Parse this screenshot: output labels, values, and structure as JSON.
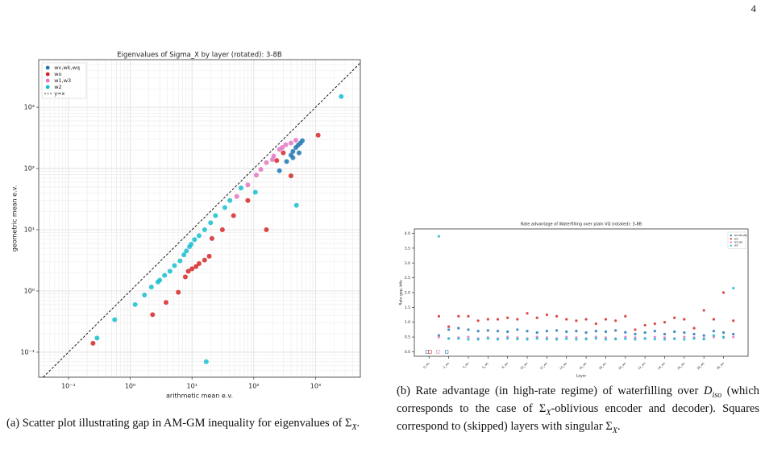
{
  "page_number": "4",
  "chart_data": [
    {
      "type": "scatter",
      "title": "Eigenvalues of Sigma_X by layer (rotated): 3-8B",
      "x_label": "arithmetic mean e.v.",
      "y_label": "geometric mean e.v.",
      "xscale": "log",
      "yscale": "log",
      "grid": true,
      "legend": "upper left",
      "xlim": [
        0.033,
        5300
      ],
      "ylim": [
        0.039,
        6000
      ],
      "xticks": [
        {
          "value": 0.1,
          "label": "10⁻¹"
        },
        {
          "value": 1,
          "label": "10⁰"
        },
        {
          "value": 10,
          "label": "10¹"
        },
        {
          "value": 100,
          "label": "10²"
        },
        {
          "value": 1000,
          "label": "10³"
        }
      ],
      "yticks": [
        {
          "value": 0.1,
          "label": "10⁻¹"
        },
        {
          "value": 1,
          "label": "10⁰"
        },
        {
          "value": 10,
          "label": "10¹"
        },
        {
          "value": 100,
          "label": "10²"
        },
        {
          "value": 1000,
          "label": "10³"
        }
      ],
      "reference_line": {
        "name": "y=x",
        "color": "#000000"
      },
      "series": [
        {
          "name": "wv,wk,wq",
          "color": "#1f77b4",
          "x": [
            260,
            340,
            400,
            430,
            480,
            520,
            570,
            610,
            540,
            430
          ],
          "values": [
            92,
            130,
            165,
            190,
            220,
            240,
            260,
            285,
            180,
            150
          ]
        },
        {
          "name": "wo",
          "color": "#d62728",
          "x": [
            0.25,
            2.3,
            3.8,
            6,
            7.8,
            8.7,
            10,
            11.6,
            13,
            16,
            19,
            21,
            31,
            47,
            80,
            160,
            400,
            1100,
            235,
            300
          ],
          "values": [
            0.14,
            0.41,
            0.65,
            0.95,
            1.7,
            2.1,
            2.3,
            2.5,
            2.8,
            3.2,
            3.7,
            7.2,
            10,
            17,
            30,
            10,
            76,
            350,
            135,
            180
          ]
        },
        {
          "name": "w1,w3",
          "color": "#e377c2",
          "x": [
            110,
            130,
            160,
            210,
            260,
            330,
            400,
            480,
            80,
            53,
            200,
            290
          ],
          "values": [
            78,
            97,
            125,
            160,
            205,
            245,
            260,
            290,
            54,
            35,
            140,
            220
          ]
        },
        {
          "name": "w2",
          "color": "#17becf",
          "x": [
            0.29,
            0.56,
            1.2,
            1.7,
            2.2,
            2.8,
            3.0,
            3.6,
            4.4,
            5.2,
            6.4,
            7.4,
            8.1,
            9.1,
            9.7,
            11,
            13,
            16,
            20,
            24,
            34,
            41,
            62,
            106,
            490,
            17,
            2600
          ],
          "values": [
            0.17,
            0.34,
            0.6,
            0.86,
            1.16,
            1.4,
            1.5,
            1.8,
            2.1,
            2.6,
            3.1,
            3.9,
            4.5,
            5.3,
            5.8,
            6.9,
            8,
            10,
            13,
            17,
            23,
            30,
            48,
            41,
            25,
            0.07,
            1500
          ]
        }
      ]
    },
    {
      "type": "scatter",
      "title": "Rate advantage of Waterfilling over plain VQ (rotated): 3-8B",
      "x_label": "Layer",
      "y_label": "Rate gap, bits",
      "grid": false,
      "legend": "upper right",
      "xlim": [
        -1.5,
        32.5
      ],
      "ylim": [
        -0.15,
        4.15
      ],
      "xticks": [
        {
          "value": 0,
          "label": "0_wo"
        },
        {
          "value": 2,
          "label": "2_wo"
        },
        {
          "value": 4,
          "label": "4_wo"
        },
        {
          "value": 6,
          "label": "6_wo"
        },
        {
          "value": 8,
          "label": "8_wo"
        },
        {
          "value": 10,
          "label": "10_wo"
        },
        {
          "value": 12,
          "label": "12_wo"
        },
        {
          "value": 14,
          "label": "14_wo"
        },
        {
          "value": 16,
          "label": "16_wo"
        },
        {
          "value": 18,
          "label": "18_wo"
        },
        {
          "value": 20,
          "label": "20_wo"
        },
        {
          "value": 22,
          "label": "22_wo"
        },
        {
          "value": 24,
          "label": "24_wo"
        },
        {
          "value": 26,
          "label": "26_wo"
        },
        {
          "value": 28,
          "label": "28_wo"
        },
        {
          "value": 30,
          "label": "30_wo"
        }
      ],
      "yticks": [
        {
          "value": 0,
          "label": "0.0"
        },
        {
          "value": 0.5,
          "label": "0.5"
        },
        {
          "value": 1,
          "label": "1.0"
        },
        {
          "value": 1.5,
          "label": "1.5"
        },
        {
          "value": 2,
          "label": "2.0"
        },
        {
          "value": 2.5,
          "label": "2.5"
        },
        {
          "value": 3,
          "label": "3.0"
        },
        {
          "value": 3.5,
          "label": "3.5"
        },
        {
          "value": 4,
          "label": "4.0"
        }
      ],
      "x": [
        0,
        1,
        2,
        3,
        4,
        5,
        6,
        7,
        8,
        9,
        10,
        11,
        12,
        13,
        14,
        15,
        16,
        17,
        18,
        19,
        20,
        21,
        22,
        23,
        24,
        25,
        26,
        27,
        28,
        29,
        30,
        31
      ],
      "series": [
        {
          "name": "wv,wk,wq",
          "color": "#1f77b4",
          "values": [
            null,
            0.55,
            0.75,
            0.8,
            0.75,
            0.7,
            0.72,
            0.7,
            0.68,
            0.75,
            0.7,
            0.65,
            0.7,
            0.72,
            0.68,
            0.7,
            0.65,
            0.7,
            0.68,
            0.72,
            0.66,
            0.6,
            0.65,
            0.7,
            0.6,
            0.68,
            0.65,
            0.6,
            0.55,
            0.7,
            0.65,
            0.6
          ]
        },
        {
          "name": "wo",
          "color": "#d62728",
          "values": [
            null,
            1.2,
            0.85,
            1.2,
            1.2,
            1.05,
            1.1,
            1.1,
            1.15,
            1.1,
            1.3,
            1.15,
            1.25,
            1.2,
            1.1,
            1.05,
            1.1,
            0.95,
            1.1,
            1.05,
            1.2,
            0.75,
            0.9,
            0.95,
            1.0,
            1.15,
            1.1,
            0.8,
            1.4,
            1.1,
            2.0,
            1.05
          ]
        },
        {
          "name": "w1,w3",
          "color": "#e377c2",
          "values": [
            null,
            0.5,
            0.45,
            0.48,
            0.5,
            0.45,
            0.48,
            0.45,
            0.5,
            0.48,
            0.45,
            0.5,
            0.48,
            0.45,
            0.5,
            0.48,
            0.45,
            0.5,
            0.48,
            0.45,
            0.5,
            0.48,
            0.45,
            0.5,
            0.48,
            0.45,
            0.5,
            0.48,
            0.45,
            0.5,
            0.48,
            0.5
          ]
        },
        {
          "name": "w2",
          "color": "#17becf",
          "values": [
            null,
            3.9,
            0.45,
            0.45,
            0.42,
            0.42,
            0.45,
            0.42,
            0.45,
            0.43,
            0.42,
            0.45,
            0.43,
            0.42,
            0.44,
            0.42,
            0.43,
            0.45,
            0.42,
            0.43,
            0.44,
            0.42,
            0.45,
            0.43,
            0.42,
            0.44,
            0.42,
            0.45,
            0.43,
            0.55,
            0.5,
            2.15
          ]
        }
      ],
      "singular": [
        {
          "x": -0.2,
          "value": 0,
          "series": 0
        },
        {
          "x": 0.1,
          "value": 0,
          "series": 1
        },
        {
          "x": 0.9,
          "value": 0,
          "series": 2
        },
        {
          "x": 1.8,
          "value": 0,
          "series": 0
        }
      ]
    }
  ],
  "captions": [
    [
      {
        "text": "(a) Scatter plot illustrating gap in AM-GM inequality for eigenvalues of Σ",
        "style": "plain"
      },
      {
        "text": "X",
        "style": "sub"
      },
      {
        "text": ".",
        "style": "plain"
      }
    ],
    [
      {
        "text": "(b) Rate advantage (in high-rate regime) of waterfilling over ",
        "style": "plain"
      },
      {
        "text": "D",
        "style": "italic"
      },
      {
        "text": "iso",
        "style": "sub"
      },
      {
        "text": " (which corresponds to the case of Σ",
        "style": "plain"
      },
      {
        "text": "X",
        "style": "sub"
      },
      {
        "text": "-oblivious encoder and decoder). Squares correspond to (skipped) layers with singular Σ",
        "style": "plain"
      },
      {
        "text": "X",
        "style": "sub"
      },
      {
        "text": ".",
        "style": "plain"
      }
    ]
  ]
}
